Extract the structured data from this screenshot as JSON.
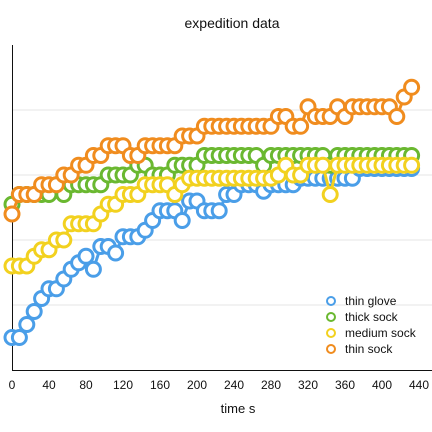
{
  "chart_data": {
    "type": "scatter",
    "title": "expedition data",
    "xlabel": "time s",
    "ylabel": "",
    "xlim": [
      0,
      440
    ],
    "ylim": [
      0,
      10
    ],
    "x_ticks": [
      "0",
      "40",
      "80",
      "120",
      "160",
      "200",
      "240",
      "280",
      "320",
      "360",
      "400",
      "440"
    ],
    "grid": "horizontal",
    "legend_position": "bottom-right",
    "series": [
      {
        "name": "thin glove",
        "color": "#4a9ee8",
        "points": [
          [
            0,
            1.0
          ],
          [
            8,
            1.0
          ],
          [
            16,
            1.4
          ],
          [
            24,
            1.8
          ],
          [
            32,
            2.2
          ],
          [
            40,
            2.5
          ],
          [
            48,
            2.5
          ],
          [
            56,
            2.8
          ],
          [
            64,
            3.1
          ],
          [
            72,
            3.3
          ],
          [
            80,
            3.5
          ],
          [
            88,
            3.1
          ],
          [
            96,
            3.8
          ],
          [
            104,
            3.8
          ],
          [
            112,
            3.6
          ],
          [
            120,
            4.1
          ],
          [
            128,
            4.1
          ],
          [
            136,
            4.1
          ],
          [
            144,
            4.3
          ],
          [
            152,
            4.6
          ],
          [
            160,
            4.9
          ],
          [
            168,
            4.9
          ],
          [
            176,
            4.9
          ],
          [
            184,
            4.6
          ],
          [
            192,
            5.2
          ],
          [
            200,
            5.2
          ],
          [
            208,
            4.9
          ],
          [
            216,
            4.9
          ],
          [
            224,
            4.9
          ],
          [
            232,
            5.4
          ],
          [
            240,
            5.4
          ],
          [
            248,
            5.7
          ],
          [
            256,
            5.7
          ],
          [
            264,
            5.7
          ],
          [
            272,
            5.5
          ],
          [
            280,
            5.7
          ],
          [
            288,
            5.7
          ],
          [
            296,
            5.7
          ],
          [
            304,
            5.7
          ],
          [
            312,
            5.9
          ],
          [
            320,
            5.9
          ],
          [
            328,
            5.9
          ],
          [
            336,
            5.9
          ],
          [
            344,
            5.9
          ],
          [
            352,
            5.9
          ],
          [
            360,
            5.9
          ],
          [
            368,
            5.9
          ],
          [
            376,
            6.2
          ],
          [
            384,
            6.2
          ],
          [
            392,
            6.2
          ],
          [
            400,
            6.2
          ],
          [
            408,
            6.2
          ],
          [
            416,
            6.2
          ],
          [
            424,
            6.2
          ],
          [
            432,
            6.2
          ]
        ]
      },
      {
        "name": "thick sock",
        "color": "#6ab830",
        "points": [
          [
            0,
            5.1
          ],
          [
            8,
            5.4
          ],
          [
            16,
            5.4
          ],
          [
            24,
            5.4
          ],
          [
            32,
            5.4
          ],
          [
            40,
            5.4
          ],
          [
            48,
            5.7
          ],
          [
            56,
            5.4
          ],
          [
            64,
            5.7
          ],
          [
            72,
            5.7
          ],
          [
            80,
            5.7
          ],
          [
            88,
            5.7
          ],
          [
            96,
            5.7
          ],
          [
            104,
            6.0
          ],
          [
            112,
            6.0
          ],
          [
            120,
            6.0
          ],
          [
            128,
            6.0
          ],
          [
            136,
            6.3
          ],
          [
            144,
            6.3
          ],
          [
            152,
            6.0
          ],
          [
            160,
            6.0
          ],
          [
            168,
            6.0
          ],
          [
            176,
            6.3
          ],
          [
            184,
            6.3
          ],
          [
            192,
            6.3
          ],
          [
            200,
            6.3
          ],
          [
            208,
            6.6
          ],
          [
            216,
            6.6
          ],
          [
            224,
            6.6
          ],
          [
            232,
            6.6
          ],
          [
            240,
            6.6
          ],
          [
            248,
            6.6
          ],
          [
            256,
            6.6
          ],
          [
            264,
            6.6
          ],
          [
            272,
            6.3
          ],
          [
            280,
            6.6
          ],
          [
            288,
            6.6
          ],
          [
            296,
            6.6
          ],
          [
            304,
            6.6
          ],
          [
            312,
            6.6
          ],
          [
            320,
            6.6
          ],
          [
            328,
            6.6
          ],
          [
            336,
            6.6
          ],
          [
            344,
            6.3
          ],
          [
            352,
            6.6
          ],
          [
            360,
            6.6
          ],
          [
            368,
            6.6
          ],
          [
            376,
            6.6
          ],
          [
            384,
            6.6
          ],
          [
            392,
            6.6
          ],
          [
            400,
            6.6
          ],
          [
            408,
            6.6
          ],
          [
            416,
            6.6
          ],
          [
            424,
            6.6
          ],
          [
            432,
            6.6
          ]
        ]
      },
      {
        "name": "medium sock",
        "color": "#f2d11f",
        "points": [
          [
            0,
            3.2
          ],
          [
            8,
            3.2
          ],
          [
            16,
            3.2
          ],
          [
            24,
            3.5
          ],
          [
            32,
            3.7
          ],
          [
            40,
            3.7
          ],
          [
            48,
            4.0
          ],
          [
            56,
            4.0
          ],
          [
            64,
            4.5
          ],
          [
            72,
            4.5
          ],
          [
            80,
            4.5
          ],
          [
            88,
            4.5
          ],
          [
            96,
            4.8
          ],
          [
            104,
            5.1
          ],
          [
            112,
            5.1
          ],
          [
            120,
            5.4
          ],
          [
            128,
            5.4
          ],
          [
            136,
            5.4
          ],
          [
            144,
            5.7
          ],
          [
            152,
            5.7
          ],
          [
            160,
            5.7
          ],
          [
            168,
            5.7
          ],
          [
            176,
            5.4
          ],
          [
            184,
            5.7
          ],
          [
            192,
            5.9
          ],
          [
            200,
            5.9
          ],
          [
            208,
            5.9
          ],
          [
            216,
            5.9
          ],
          [
            224,
            5.9
          ],
          [
            232,
            5.9
          ],
          [
            240,
            5.9
          ],
          [
            248,
            5.9
          ],
          [
            256,
            5.9
          ],
          [
            264,
            5.9
          ],
          [
            272,
            5.9
          ],
          [
            280,
            5.9
          ],
          [
            288,
            6.0
          ],
          [
            296,
            6.3
          ],
          [
            304,
            6.0
          ],
          [
            312,
            6.0
          ],
          [
            320,
            6.3
          ],
          [
            328,
            6.3
          ],
          [
            336,
            6.3
          ],
          [
            344,
            5.4
          ],
          [
            352,
            6.3
          ],
          [
            360,
            6.3
          ],
          [
            368,
            6.3
          ],
          [
            376,
            6.3
          ],
          [
            384,
            6.3
          ],
          [
            392,
            6.3
          ],
          [
            400,
            6.3
          ],
          [
            408,
            6.3
          ],
          [
            416,
            6.3
          ],
          [
            424,
            6.3
          ],
          [
            432,
            6.3
          ]
        ]
      },
      {
        "name": "thin sock",
        "color": "#f08c1e",
        "points": [
          [
            0,
            4.8
          ],
          [
            8,
            5.4
          ],
          [
            16,
            5.4
          ],
          [
            24,
            5.4
          ],
          [
            32,
            5.7
          ],
          [
            40,
            5.7
          ],
          [
            48,
            5.7
          ],
          [
            56,
            6.0
          ],
          [
            64,
            6.0
          ],
          [
            72,
            6.3
          ],
          [
            80,
            6.3
          ],
          [
            88,
            6.6
          ],
          [
            96,
            6.6
          ],
          [
            104,
            6.9
          ],
          [
            112,
            6.9
          ],
          [
            120,
            6.9
          ],
          [
            128,
            6.6
          ],
          [
            136,
            6.6
          ],
          [
            144,
            6.9
          ],
          [
            152,
            6.9
          ],
          [
            160,
            6.9
          ],
          [
            168,
            6.9
          ],
          [
            176,
            6.9
          ],
          [
            184,
            7.2
          ],
          [
            192,
            7.2
          ],
          [
            200,
            7.2
          ],
          [
            208,
            7.5
          ],
          [
            216,
            7.5
          ],
          [
            224,
            7.5
          ],
          [
            232,
            7.5
          ],
          [
            240,
            7.5
          ],
          [
            248,
            7.5
          ],
          [
            256,
            7.5
          ],
          [
            264,
            7.5
          ],
          [
            272,
            7.5
          ],
          [
            280,
            7.5
          ],
          [
            288,
            7.8
          ],
          [
            296,
            7.8
          ],
          [
            304,
            7.5
          ],
          [
            312,
            7.5
          ],
          [
            320,
            8.1
          ],
          [
            328,
            7.8
          ],
          [
            336,
            7.8
          ],
          [
            344,
            7.8
          ],
          [
            352,
            8.1
          ],
          [
            360,
            7.8
          ],
          [
            368,
            8.1
          ],
          [
            376,
            8.1
          ],
          [
            384,
            8.1
          ],
          [
            392,
            8.1
          ],
          [
            400,
            8.1
          ],
          [
            408,
            8.1
          ],
          [
            416,
            7.8
          ],
          [
            424,
            8.4
          ],
          [
            432,
            8.7
          ]
        ]
      }
    ]
  }
}
